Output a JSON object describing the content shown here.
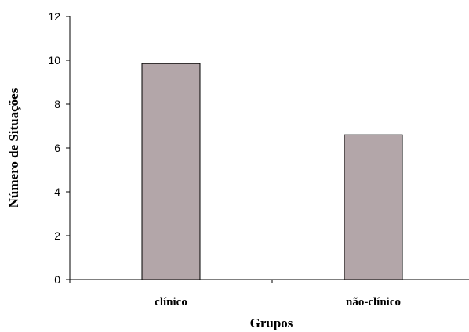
{
  "chart_data": {
    "type": "bar",
    "categories": [
      "clínico",
      "não-clínico"
    ],
    "values": [
      9.85,
      6.6
    ],
    "xlabel": "Grupos",
    "ylabel": "Número de Situações",
    "ylim": [
      0,
      12
    ],
    "yticks": [
      0,
      2,
      4,
      6,
      8,
      10,
      12
    ],
    "grid": false,
    "legend": "none",
    "bar_color": "#b3a6a9"
  }
}
